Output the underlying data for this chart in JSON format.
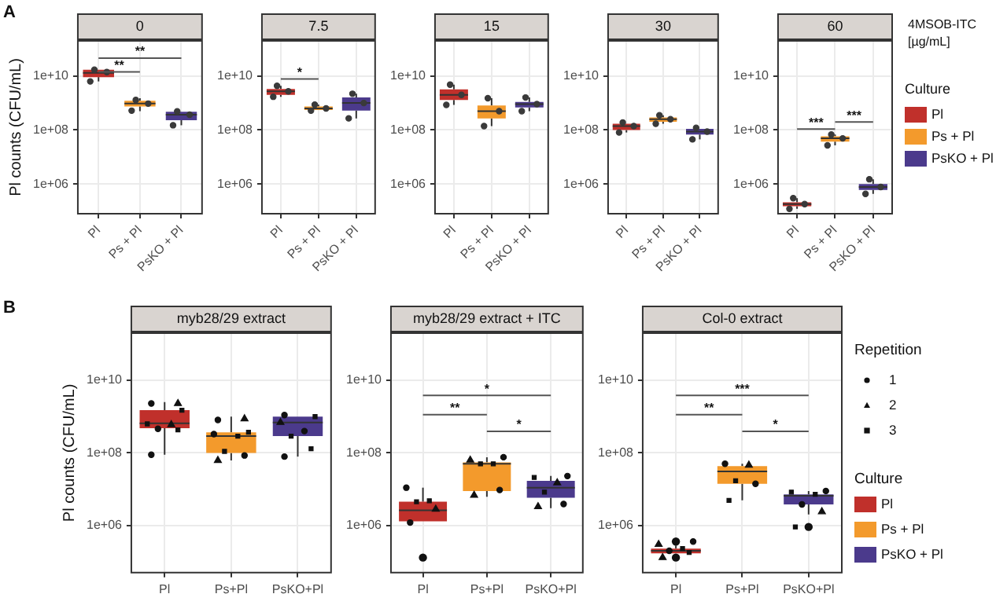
{
  "chart_data": [
    {
      "type": "box",
      "title": "0",
      "ylabel": "Pl counts (CFU/mL)",
      "categories": [
        "Pl",
        "Ps + Pl",
        "PsKO + Pl"
      ],
      "log": true,
      "grid": true,
      "ylim": [
        80000.0,
        200000000000.0
      ],
      "yticks": [
        {
          "value": 1000000.0,
          "label": "1e+06"
        },
        {
          "value": 100000000.0,
          "label": "1e+08"
        },
        {
          "value": 10000000000.0,
          "label": "1e+10"
        }
      ],
      "annotations": [
        "A",
        "**",
        "**"
      ],
      "series": [
        {
          "color": "#c0302b",
          "boxes": [
            {
              "low": 6300000000.0,
              "q1": 9100000000.0,
              "median": 13000000000.0,
              "q3": 17000000000.0,
              "high": 19000000000.0
            },
            null,
            null
          ]
        },
        {
          "color": "#f39a2c",
          "boxes": [
            null,
            {
              "low": 500000000.0,
              "q1": 740000000.0,
              "median": 950000000.0,
              "q3": 1200000000.0,
              "high": 1500000000.0
            },
            null
          ]
        },
        {
          "color": "#4b3a8c",
          "boxes": [
            null,
            null,
            {
              "low": 150000000.0,
              "q1": 230000000.0,
              "median": 370000000.0,
              "q3": 470000000.0,
              "high": 500000000.0
            }
          ]
        },
        {
          "type": "scatter",
          "marker": "circle",
          "color": "#3a3a3a",
          "x": [
            "Pl",
            "Pl",
            "Pl",
            "Ps + Pl",
            "Ps + Pl",
            "Ps + Pl",
            "PsKO + Pl",
            "PsKO + Pl",
            "PsKO + Pl"
          ],
          "values": [
            17000000000.0,
            6300000000.0,
            14000000000.0,
            1300000000.0,
            520000000.0,
            950000000.0,
            490000000.0,
            150000000.0,
            370000000.0
          ]
        }
      ]
    },
    {
      "type": "box",
      "title": "7.5",
      "categories": [
        "Pl",
        "Ps + Pl",
        "PsKO + Pl"
      ],
      "log": true,
      "grid": true,
      "ylim": [
        80000.0,
        200000000000.0
      ],
      "yticks": [
        {
          "value": 1000000.0,
          "label": "1e+06"
        },
        {
          "value": 100000000.0,
          "label": "1e+08"
        },
        {
          "value": 10000000000.0,
          "label": "1e+10"
        }
      ],
      "annotations": [
        "*"
      ],
      "series": [
        {
          "color": "#c0302b",
          "boxes": [
            {
              "low": 1700000000.0,
              "q1": 2000000000.0,
              "median": 2700000000.0,
              "q3": 3300000000.0,
              "high": 4300000000.0
            },
            null,
            null
          ]
        },
        {
          "color": "#f39a2c",
          "boxes": [
            null,
            {
              "low": 520000000.0,
              "q1": 550000000.0,
              "median": 630000000.0,
              "q3": 740000000.0,
              "high": 870000000.0
            },
            null
          ]
        },
        {
          "color": "#4b3a8c",
          "boxes": [
            null,
            null,
            {
              "low": 270000000.0,
              "q1": 520000000.0,
              "median": 1000000000.0,
              "q3": 1600000000.0,
              "high": 2200000000.0
            }
          ]
        },
        {
          "type": "scatter",
          "marker": "circle",
          "color": "#3a3a3a",
          "x": [
            "Pl",
            "Pl",
            "Pl",
            "Ps + Pl",
            "Ps + Pl",
            "Ps + Pl",
            "PsKO + Pl",
            "PsKO + Pl",
            "PsKO + Pl"
          ],
          "values": [
            4300000000.0,
            1700000000.0,
            2700000000.0,
            870000000.0,
            520000000.0,
            630000000.0,
            2200000000.0,
            270000000.0,
            1000000000.0
          ]
        }
      ]
    },
    {
      "type": "box",
      "title": "15",
      "categories": [
        "Pl",
        "Ps + Pl",
        "PsKO + Pl"
      ],
      "log": true,
      "grid": true,
      "ylim": [
        80000.0,
        200000000000.0
      ],
      "yticks": [
        {
          "value": 1000000.0,
          "label": "1e+06"
        },
        {
          "value": 100000000.0,
          "label": "1e+08"
        },
        {
          "value": 10000000000.0,
          "label": "1e+10"
        }
      ],
      "series": [
        {
          "color": "#c0302b",
          "boxes": [
            {
              "low": 850000000.0,
              "q1": 1300000000.0,
              "median": 2000000000.0,
              "q3": 3200000000.0,
              "high": 4800000000.0
            },
            null,
            null
          ]
        },
        {
          "color": "#f39a2c",
          "boxes": [
            null,
            {
              "low": 140000000.0,
              "q1": 270000000.0,
              "median": 500000000.0,
              "q3": 810000000.0,
              "high": 1500000000.0
            },
            null
          ]
        },
        {
          "color": "#4b3a8c",
          "boxes": [
            null,
            null,
            {
              "low": 500000000.0,
              "q1": 680000000.0,
              "median": 910000000.0,
              "q3": 1100000000.0,
              "high": 1600000000.0
            }
          ]
        },
        {
          "type": "scatter",
          "marker": "circle",
          "color": "#3a3a3a",
          "x": [
            "Pl",
            "Pl",
            "Pl",
            "Ps + Pl",
            "Ps + Pl",
            "Ps + Pl",
            "PsKO + Pl",
            "PsKO + Pl",
            "PsKO + Pl"
          ],
          "values": [
            4800000000.0,
            850000000.0,
            2000000000.0,
            1500000000.0,
            140000000.0,
            500000000.0,
            1600000000.0,
            500000000.0,
            910000000.0
          ]
        }
      ]
    },
    {
      "type": "box",
      "title": "30",
      "categories": [
        "Pl",
        "Ps + Pl",
        "PsKO + Pl"
      ],
      "log": true,
      "grid": true,
      "ylim": [
        80000.0,
        200000000000.0
      ],
      "yticks": [
        {
          "value": 1000000.0,
          "label": "1e+06"
        },
        {
          "value": 100000000.0,
          "label": "1e+08"
        },
        {
          "value": 10000000000.0,
          "label": "1e+10"
        }
      ],
      "series": [
        {
          "color": "#c0302b",
          "boxes": [
            {
              "low": 81000000.0,
              "q1": 100000000.0,
              "median": 140000000.0,
              "q3": 170000000.0,
              "high": 190000000.0
            },
            null,
            null
          ]
        },
        {
          "color": "#f39a2c",
          "boxes": [
            null,
            {
              "low": 170000000.0,
              "q1": 200000000.0,
              "median": 250000000.0,
              "q3": 290000000.0,
              "high": 350000000.0
            },
            null
          ]
        },
        {
          "color": "#4b3a8c",
          "boxes": [
            null,
            null,
            {
              "low": 45000000.0,
              "q1": 68000000.0,
              "median": 87000000.0,
              "q3": 110000000.0,
              "high": 120000000.0
            }
          ]
        },
        {
          "type": "scatter",
          "marker": "circle",
          "color": "#3a3a3a",
          "x": [
            "Pl",
            "Pl",
            "Pl",
            "Ps + Pl",
            "Ps + Pl",
            "Ps + Pl",
            "PsKO + Pl",
            "PsKO + Pl",
            "PsKO + Pl"
          ],
          "values": [
            190000000.0,
            81000000.0,
            140000000.0,
            350000000.0,
            170000000.0,
            250000000.0,
            120000000.0,
            45000000.0,
            87000000.0
          ]
        }
      ]
    },
    {
      "type": "box",
      "title": "60",
      "categories": [
        "Pl",
        "Ps + Pl",
        "PsKO + Pl"
      ],
      "log": true,
      "grid": true,
      "ylim": [
        80000.0,
        200000000000.0
      ],
      "yticks": [
        {
          "value": 1000000.0,
          "label": "1e+06"
        },
        {
          "value": 100000000.0,
          "label": "1e+08"
        },
        {
          "value": 10000000000.0,
          "label": "1e+10"
        }
      ],
      "annotations": [
        "***",
        "***",
        "4MSOB-ITC [µg/mL]"
      ],
      "legend": "right",
      "legend_title": "Culture",
      "series": [
        {
          "name": "Pl",
          "color": "#c0302b",
          "boxes": [
            {
              "low": 120000.0,
              "q1": 150000.0,
              "median": 180000.0,
              "q3": 210000.0,
              "high": 300000.0
            },
            null,
            null
          ]
        },
        {
          "name": "Ps + Pl",
          "color": "#f39a2c",
          "boxes": [
            null,
            {
              "low": 27000000.0,
              "q1": 37000000.0,
              "median": 49000000.0,
              "q3": 58000000.0,
              "high": 68000000.0
            },
            null
          ]
        },
        {
          "name": "PsKO + Pl",
          "color": "#4b3a8c",
          "boxes": [
            null,
            null,
            {
              "low": 430000.0,
              "q1": 600000.0,
              "median": 780000.0,
              "q3": 1000000.0,
              "high": 1500000.0
            }
          ]
        },
        {
          "type": "scatter",
          "marker": "circle",
          "color": "#3a3a3a",
          "x": [
            "Pl",
            "Pl",
            "Pl",
            "Ps + Pl",
            "Ps + Pl",
            "Ps + Pl",
            "PsKO + Pl",
            "PsKO + Pl",
            "PsKO + Pl"
          ],
          "values": [
            300000.0,
            120000.0,
            180000.0,
            68000000.0,
            27000000.0,
            49000000.0,
            1500000.0,
            430000.0,
            780000.0
          ]
        }
      ]
    },
    {
      "type": "box",
      "title": "myb28/29 extract",
      "ylabel": "Pl counts (CFU/mL)",
      "categories": [
        "Pl",
        "Ps+Pl",
        "PsKO+Pl"
      ],
      "log": true,
      "grid": true,
      "ylim": [
        50000.0,
        200000000000.0
      ],
      "yticks": [
        {
          "value": 1000000.0,
          "label": "1e+06"
        },
        {
          "value": 100000000.0,
          "label": "1e+08"
        },
        {
          "value": 10000000000.0,
          "label": "1e+10"
        }
      ],
      "annotations": [
        "B"
      ],
      "series": [
        {
          "color": "#c0302b",
          "boxes": [
            {
              "low": 89000000.0,
              "q1": 480000000.0,
              "median": 650000000.0,
              "q3": 1500000000.0,
              "high": 2500000000.0
            },
            null,
            null
          ]
        },
        {
          "color": "#f39a2c",
          "boxes": [
            null,
            {
              "low": 62000000.0,
              "q1": 100000000.0,
              "median": 290000000.0,
              "q3": 370000000.0,
              "high": 1000000000.0
            },
            null
          ]
        },
        {
          "color": "#4b3a8c",
          "boxes": [
            null,
            null,
            {
              "low": 79000000.0,
              "q1": 290000000.0,
              "median": 690000000.0,
              "q3": 1000000000.0,
              "high": 1100000000.0
            }
          ]
        },
        {
          "type": "scatter",
          "marker": "circle",
          "color": "#111111",
          "x": [
            "Pl",
            "Pl",
            "Pl",
            "Ps+Pl",
            "Ps+Pl",
            "Ps+Pl",
            "PsKO+Pl",
            "PsKO+Pl",
            "PsKO+Pl"
          ],
          "values": [
            2300000000.0,
            460000000.0,
            89000000.0,
            810000000.0,
            330000000.0,
            85000000.0,
            1100000000.0,
            400000000.0,
            79000000.0
          ]
        },
        {
          "type": "scatter",
          "marker": "triangle",
          "color": "#111111",
          "x": [
            "Pl",
            "Pl",
            "Ps+Pl",
            "Ps+Pl",
            "PsKO+Pl"
          ],
          "values": [
            2300000000.0,
            600000000.0,
            870000000.0,
            62000000.0,
            690000000.0
          ]
        },
        {
          "type": "scatter",
          "marker": "square",
          "color": "#111111",
          "x": [
            "Pl",
            "Pl",
            "Pl",
            "Ps+Pl",
            "Ps+Pl",
            "Ps+Pl",
            "PsKO+Pl",
            "PsKO+Pl",
            "PsKO+Pl"
          ],
          "values": [
            1500000000.0,
            630000000.0,
            430000000.0,
            370000000.0,
            290000000.0,
            110000000.0,
            1000000000.0,
            290000000.0,
            130000000.0
          ]
        }
      ]
    },
    {
      "type": "box",
      "title": "myb28/29 extract + ITC",
      "categories": [
        "Pl",
        "Ps+Pl",
        "PsKO+Pl"
      ],
      "log": true,
      "grid": true,
      "ylim": [
        50000.0,
        200000000000.0
      ],
      "yticks": [
        {
          "value": 1000000.0,
          "label": "1e+06"
        },
        {
          "value": 100000000.0,
          "label": "1e+08"
        },
        {
          "value": 10000000000.0,
          "label": "1e+10"
        }
      ],
      "annotations": [
        "*",
        "**",
        "*"
      ],
      "series": [
        {
          "color": "#c0302b",
          "boxes": [
            {
              "low": 1200000.0,
              "q1": 1300000.0,
              "median": 2600000.0,
              "q3": 4500000.0,
              "high": 11000000.0,
              "outliers": [
                130000.0
              ]
            },
            null,
            null
          ]
        },
        {
          "color": "#f39a2c",
          "boxes": [
            null,
            {
              "low": 6200000.0,
              "q1": 8900000.0,
              "median": 50000000.0,
              "q3": 55000000.0,
              "high": 76000000.0
            },
            null
          ]
        },
        {
          "color": "#4b3a8c",
          "boxes": [
            null,
            null,
            {
              "low": 3000000.0,
              "q1": 5800000.0,
              "median": 11000000.0,
              "q3": 17000000.0,
              "high": 23000000.0
            }
          ]
        },
        {
          "type": "scatter",
          "marker": "circle",
          "color": "#111111",
          "x": [
            "Pl",
            "Pl",
            "Ps+Pl",
            "Ps+Pl",
            "PsKO+Pl",
            "PsKO+Pl"
          ],
          "values": [
            11000000.0,
            1200000.0,
            76000000.0,
            9500000.0,
            23000000.0,
            3900000.0
          ]
        },
        {
          "type": "scatter",
          "marker": "triangle",
          "color": "#111111",
          "x": [
            "Pl",
            "Ps+Pl",
            "Ps+Pl",
            "PsKO+Pl",
            "PsKO+Pl"
          ],
          "values": [
            2800000.0,
            63000000.0,
            6800000.0,
            15000000.0,
            3300000.0
          ]
        },
        {
          "type": "scatter",
          "marker": "square",
          "color": "#111111",
          "x": [
            "Pl",
            "Pl",
            "Ps+Pl",
            "Ps+Pl",
            "PsKO+Pl",
            "PsKO+Pl"
          ],
          "values": [
            4500000.0,
            4800000.0,
            50000000.0,
            50000000.0,
            21000000.0,
            8300000.0
          ]
        }
      ]
    },
    {
      "type": "box",
      "title": "Col-0 extract",
      "categories": [
        "Pl",
        "Ps+Pl",
        "PsKO+Pl"
      ],
      "log": true,
      "grid": true,
      "ylim": [
        50000.0,
        200000000000.0
      ],
      "yticks": [
        {
          "value": 1000000.0,
          "label": "1e+06"
        },
        {
          "value": 100000000.0,
          "label": "1e+08"
        },
        {
          "value": 10000000000.0,
          "label": "1e+10"
        }
      ],
      "annotations": [
        "***",
        "**",
        "*",
        "Repetition"
      ],
      "legend": "right",
      "legend_title": "Culture",
      "series": [
        {
          "name": "Pl",
          "color": "#c0302b",
          "boxes": [
            {
              "low": 160000.0,
              "q1": 170000.0,
              "median": 200000.0,
              "q3": 230000.0,
              "high": 280000.0,
              "outliers": [
                360000.0,
                130000.0
              ]
            },
            null,
            null
          ]
        },
        {
          "name": "Ps + Pl",
          "color": "#f39a2c",
          "boxes": [
            null,
            {
              "low": 4900000.0,
              "q1": 14000000.0,
              "median": 31000000.0,
              "q3": 43000000.0,
              "high": 50000000.0
            },
            null
          ]
        },
        {
          "name": "PsKO + Pl",
          "color": "#4b3a8c",
          "boxes": [
            null,
            null,
            {
              "low": 2000000.0,
              "q1": 3800000.0,
              "median": 6600000.0,
              "q3": 7200000.0,
              "high": 8900000.0,
              "outliers": [
                910000.0
              ]
            }
          ]
        },
        {
          "type": "scatter",
          "name": "1",
          "marker": "circle",
          "color": "#111111",
          "x": [
            "Pl",
            "Pl",
            "Ps+Pl",
            "Ps+Pl",
            "PsKO+Pl",
            "PsKO+Pl"
          ],
          "values": [
            360000.0,
            200000.0,
            50000000.0,
            14000000.0,
            8900000.0,
            3800000.0
          ]
        },
        {
          "type": "scatter",
          "name": "2",
          "marker": "triangle",
          "color": "#111111",
          "x": [
            "Pl",
            "Pl",
            "Ps+Pl",
            "PsKO+Pl"
          ],
          "values": [
            300000.0,
            130000.0,
            46000000.0,
            2400000.0
          ]
        },
        {
          "type": "scatter",
          "name": "3",
          "marker": "square",
          "color": "#111111",
          "x": [
            "Pl",
            "Pl",
            "Ps+Pl",
            "Ps+Pl",
            "PsKO+Pl",
            "PsKO+Pl",
            "PsKO+Pl"
          ],
          "values": [
            230000.0,
            180000.0,
            17000000.0,
            4900000.0,
            8300000.0,
            7200000.0,
            910000.0
          ]
        }
      ]
    }
  ]
}
